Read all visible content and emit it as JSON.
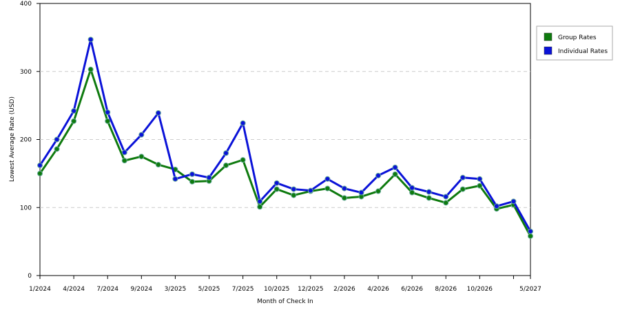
{
  "chart_data": {
    "type": "line",
    "x_label": "Month of Check In",
    "y_label": "Lowest Average Rate (USD)",
    "categories": [
      "1/2024",
      null,
      "4/2024",
      null,
      "7/2024",
      null,
      "9/2024",
      null,
      "3/2025",
      null,
      "5/2025",
      null,
      "7/2025",
      null,
      "10/2025",
      null,
      "12/2025",
      null,
      "2/2026",
      null,
      "4/2026",
      null,
      "6/2026",
      null,
      "8/2026",
      null,
      "10/2026",
      null,
      null,
      "5/2027"
    ],
    "series": [
      {
        "name": "Group Rates",
        "color": "#0e7a0e",
        "values": [
          150,
          186,
          227,
          303,
          227,
          169,
          175,
          163,
          156,
          138,
          139,
          162,
          170,
          101,
          127,
          118,
          124,
          128,
          114,
          116,
          124,
          149,
          122,
          114,
          107,
          127,
          132,
          98,
          104,
          58
        ]
      },
      {
        "name": "Individual Rates",
        "color": "#0a12d8",
        "values": [
          162,
          200,
          242,
          347,
          240,
          181,
          207,
          239,
          142,
          149,
          144,
          180,
          224,
          109,
          136,
          127,
          125,
          142,
          128,
          122,
          147,
          159,
          129,
          123,
          116,
          144,
          142,
          102,
          109,
          65
        ]
      }
    ],
    "ylim": [
      0,
      400
    ],
    "yticks": [
      0,
      100,
      200,
      300,
      400
    ],
    "grid": true,
    "legend": "right"
  }
}
